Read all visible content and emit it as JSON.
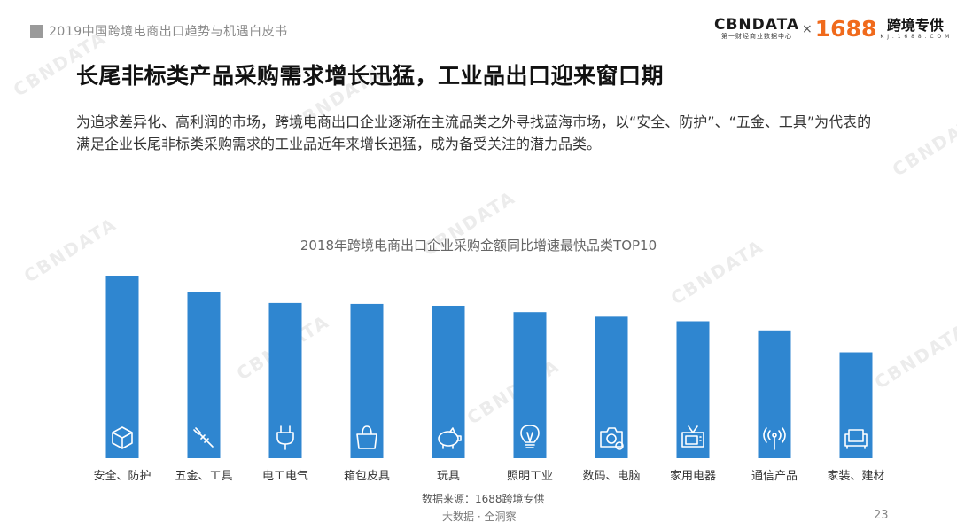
{
  "header": {
    "report_title": "2019中国跨境电商出口趋势与机遇白皮书",
    "logo_cbn": "CBNDATA",
    "logo_cbn_sub": "第一财经商业数据中心",
    "logo_times": "×",
    "logo_1688": "1688",
    "logo_kjzg": "跨境专供",
    "logo_kjzg_sub": "K J . 1 6 8 8 . C O M"
  },
  "slide": {
    "title": "长尾非标类产品采购需求增长迅猛，工业品出口迎来窗口期",
    "description": "为追求差异化、高利润的市场，跨境电商出口企业逐渐在主流品类之外寻找蓝海市场，以“安全、防护”、“五金、工具”为代表的满足企业长尾非标类采购需求的工业品近年来增长迅猛，成为备受关注的潜力品类。"
  },
  "watermark": "CBNDATA",
  "chart_data": {
    "type": "bar",
    "title": "2018年跨境电商出口企业采购金额同比增速最快品类TOP10",
    "categories": [
      "安全、防护",
      "五金、工具",
      "电工电气",
      "箱包皮具",
      "玩具",
      "照明工业",
      "数码、电脑",
      "家用电器",
      "通信产品",
      "家装、建材"
    ],
    "values": [
      100,
      91,
      85,
      84.5,
      83.5,
      80,
      77.5,
      75,
      70,
      58
    ],
    "ylim": [
      0,
      100
    ],
    "value_labels_shown": false,
    "bar_color": "#2f86d0",
    "icons": [
      "cube-shield-icon",
      "screwdriver-icon",
      "plug-icon",
      "handbag-icon",
      "piggy-toy-icon",
      "light-bulb-icon",
      "camera-icon",
      "tv-icon",
      "signal-antenna-icon",
      "sofa-icon"
    ]
  },
  "footer": {
    "source": "数据来源：1688跨境专供",
    "tagline": "大数据 · 全洞察",
    "page_number": "23"
  }
}
